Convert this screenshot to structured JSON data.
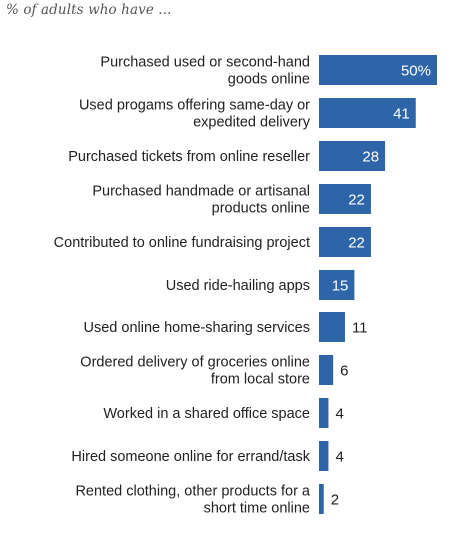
{
  "chart_data": {
    "type": "bar",
    "orientation": "horizontal",
    "subtitle": "% of adults who have ...",
    "bar_color": "#2e64a8",
    "categories": [
      "Purchased used or second-hand goods online",
      "Used progams offering same-day or expedited delivery",
      "Purchased tickets from online reseller",
      "Purchased handmade or artisanal products online",
      "Contributed to online fundraising project",
      "Used ride-hailing apps",
      "Used online home-sharing services",
      "Ordered delivery of groceries online from local store",
      "Worked in a shared office space",
      "Hired someone online for errand/task",
      "Rented clothing, other products for a short time online"
    ],
    "category_lines": [
      [
        "Purchased used or second-hand",
        "goods online"
      ],
      [
        "Used progams offering same-day or",
        "expedited delivery"
      ],
      [
        "Purchased tickets from online reseller"
      ],
      [
        "Purchased handmade or artisanal",
        "products online"
      ],
      [
        "Contributed to online fundraising project"
      ],
      [
        "Used ride-hailing apps"
      ],
      [
        "Used online home-sharing services"
      ],
      [
        "Ordered delivery of groceries online",
        "from local store"
      ],
      [
        "Worked in a shared office space"
      ],
      [
        "Hired someone online for errand/task"
      ],
      [
        "Rented clothing, other products for a",
        "short time online"
      ]
    ],
    "values": [
      50,
      41,
      28,
      22,
      22,
      15,
      11,
      6,
      4,
      4,
      2
    ],
    "value_labels": [
      "50%",
      "41",
      "28",
      "22",
      "22",
      "15",
      "11",
      "6",
      "4",
      "4",
      "2"
    ]
  }
}
